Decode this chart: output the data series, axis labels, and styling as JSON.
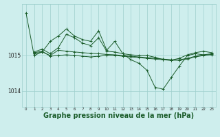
{
  "bg_color": "#ceeeed",
  "grid_color": "#9ecfcc",
  "line_color": "#1a5c2a",
  "marker_color": "#1a5c2a",
  "xlabel": "Graphe pression niveau de la mer (hPa)",
  "xlabel_fontsize": 7,
  "xticks": [
    0,
    1,
    2,
    3,
    4,
    5,
    6,
    7,
    8,
    9,
    10,
    11,
    12,
    13,
    14,
    15,
    16,
    17,
    18,
    19,
    20,
    21,
    22,
    23
  ],
  "ytick_labels": [
    "1014",
    "1015"
  ],
  "ylim": [
    1013.55,
    1016.45
  ],
  "xlim": [
    -0.5,
    23.5
  ],
  "series": [
    {
      "x": [
        0,
        1,
        2,
        3,
        4,
        5,
        6,
        7,
        8,
        9,
        10,
        11,
        12,
        13,
        14,
        15,
        16,
        17,
        18,
        19,
        20,
        21,
        22,
        23
      ],
      "y": [
        1016.2,
        1015.0,
        1015.1,
        1015.4,
        1015.55,
        1015.75,
        1015.55,
        1015.45,
        1015.4,
        1015.7,
        1015.15,
        1015.4,
        1015.05,
        1014.88,
        1014.78,
        1014.58,
        1014.1,
        1014.05,
        1014.38,
        1014.7,
        1015.0,
        1015.05,
        1015.02,
        1015.02
      ]
    },
    {
      "x": [
        1,
        2,
        3,
        4,
        5,
        6,
        7,
        8,
        9,
        10,
        11,
        12,
        13,
        14,
        15,
        16,
        17,
        18,
        19,
        20,
        21,
        22,
        23
      ],
      "y": [
        1015.1,
        1015.18,
        1015.05,
        1015.22,
        1015.6,
        1015.5,
        1015.35,
        1015.28,
        1015.5,
        1015.12,
        1015.1,
        1015.05,
        1015.02,
        1015.0,
        1015.0,
        1014.95,
        1014.88,
        1014.87,
        1014.92,
        1015.02,
        1015.08,
        1015.12,
        1015.08
      ]
    },
    {
      "x": [
        1,
        2,
        3,
        4,
        5,
        6,
        7,
        8,
        9,
        10,
        11,
        12,
        13,
        14,
        15,
        16,
        17,
        18,
        19,
        20,
        21,
        22,
        23
      ],
      "y": [
        1015.08,
        1015.12,
        1014.98,
        1015.0,
        1015.02,
        1015.0,
        1014.98,
        1014.96,
        1014.98,
        1015.0,
        1015.0,
        1014.98,
        1014.96,
        1014.94,
        1014.92,
        1014.9,
        1014.88,
        1014.86,
        1014.88,
        1014.92,
        1014.98,
        1015.02,
        1015.05
      ]
    },
    {
      "x": [
        1,
        2,
        3,
        4,
        5,
        6,
        7,
        8,
        9,
        10,
        11,
        12,
        13,
        14,
        15,
        16,
        17,
        18,
        19,
        20,
        21,
        22,
        23
      ],
      "y": [
        1015.05,
        1015.1,
        1015.0,
        1015.15,
        1015.12,
        1015.1,
        1015.08,
        1015.06,
        1015.05,
        1015.03,
        1015.02,
        1015.0,
        1014.98,
        1014.96,
        1014.94,
        1014.92,
        1014.9,
        1014.88,
        1014.86,
        1014.9,
        1014.96,
        1015.0,
        1015.03
      ]
    }
  ]
}
